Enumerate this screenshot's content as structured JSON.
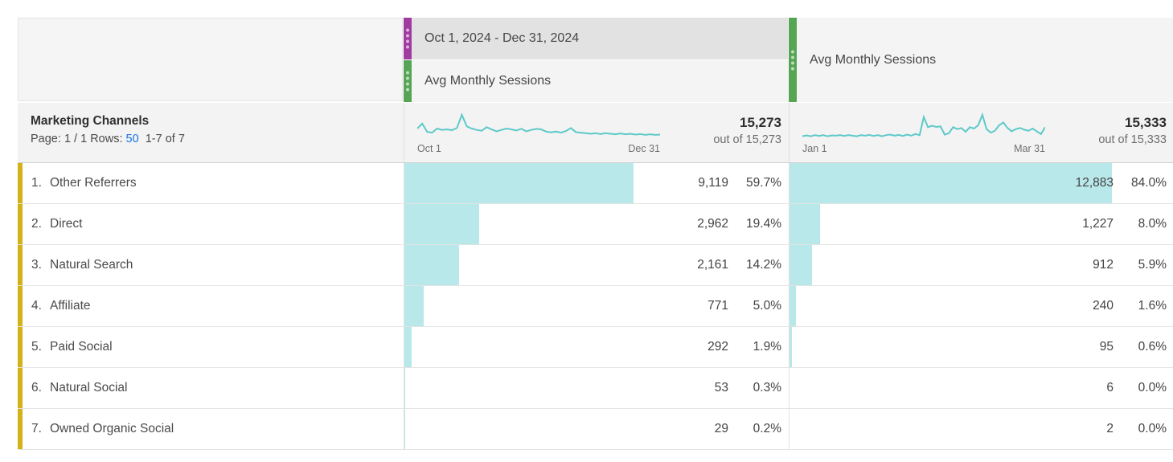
{
  "colors": {
    "accent_purple": "#a03ca0",
    "accent_green": "#55a555",
    "accent_yellow": "#d3b117",
    "spark_teal": "#5ec9c9",
    "bar_teal": "#b9e8ea",
    "link_blue": "#1473e6"
  },
  "header": {
    "date_range": "Oct 1, 2024 - Dec 31, 2024",
    "col1_metric": "Avg Monthly Sessions",
    "col2_metric": "Avg Monthly Sessions"
  },
  "dimension": {
    "title": "Marketing Channels",
    "page_label": "Page:",
    "page_value": "1 / 1",
    "rows_label": "Rows:",
    "rows_value": "50",
    "range_text": "1-7 of 7"
  },
  "totals": {
    "col1": {
      "value": "15,273",
      "out_of": "out of 15,273",
      "start_label": "Oct 1",
      "end_label": "Dec 31"
    },
    "col2": {
      "value": "15,333",
      "out_of": "out of 15,333",
      "start_label": "Jan 1",
      "end_label": "Mar 31"
    }
  },
  "sparklines": {
    "col1": [
      0.5,
      0.68,
      0.38,
      0.35,
      0.5,
      0.45,
      0.47,
      0.44,
      0.52,
      1.0,
      0.58,
      0.5,
      0.45,
      0.42,
      0.55,
      0.47,
      0.4,
      0.45,
      0.5,
      0.47,
      0.43,
      0.49,
      0.4,
      0.45,
      0.49,
      0.47,
      0.39,
      0.36,
      0.39,
      0.35,
      0.41,
      0.52,
      0.37,
      0.35,
      0.33,
      0.31,
      0.33,
      0.3,
      0.33,
      0.31,
      0.29,
      0.32,
      0.29,
      0.31,
      0.28,
      0.3,
      0.27,
      0.29,
      0.27,
      0.28
    ],
    "col2": [
      0.22,
      0.25,
      0.22,
      0.26,
      0.23,
      0.26,
      0.22,
      0.25,
      0.24,
      0.26,
      0.23,
      0.26,
      0.24,
      0.22,
      0.26,
      0.24,
      0.27,
      0.23,
      0.26,
      0.22,
      0.26,
      0.28,
      0.24,
      0.27,
      0.23,
      0.28,
      0.24,
      0.3,
      0.26,
      0.92,
      0.55,
      0.6,
      0.56,
      0.58,
      0.28,
      0.33,
      0.55,
      0.48,
      0.52,
      0.38,
      0.55,
      0.5,
      0.62,
      1.0,
      0.48,
      0.35,
      0.42,
      0.62,
      0.72,
      0.52,
      0.4,
      0.48,
      0.52,
      0.46,
      0.42,
      0.5,
      0.4,
      0.3,
      0.55
    ]
  },
  "rows": [
    {
      "rank": "1.",
      "label": "Other Referrers",
      "col1": {
        "value": "9,119",
        "pct": "59.7%",
        "bar": 59.7
      },
      "col2": {
        "value": "12,883",
        "pct": "84.0%",
        "bar": 84.0
      }
    },
    {
      "rank": "2.",
      "label": "Direct",
      "col1": {
        "value": "2,962",
        "pct": "19.4%",
        "bar": 19.4
      },
      "col2": {
        "value": "1,227",
        "pct": "8.0%",
        "bar": 8.0
      }
    },
    {
      "rank": "3.",
      "label": "Natural Search",
      "col1": {
        "value": "2,161",
        "pct": "14.2%",
        "bar": 14.2
      },
      "col2": {
        "value": "912",
        "pct": "5.9%",
        "bar": 5.9
      }
    },
    {
      "rank": "4.",
      "label": "Affiliate",
      "col1": {
        "value": "771",
        "pct": "5.0%",
        "bar": 5.0
      },
      "col2": {
        "value": "240",
        "pct": "1.6%",
        "bar": 1.6
      }
    },
    {
      "rank": "5.",
      "label": "Paid Social",
      "col1": {
        "value": "292",
        "pct": "1.9%",
        "bar": 1.9
      },
      "col2": {
        "value": "95",
        "pct": "0.6%",
        "bar": 0.6
      }
    },
    {
      "rank": "6.",
      "label": "Natural Social",
      "col1": {
        "value": "53",
        "pct": "0.3%",
        "bar": 0.3
      },
      "col2": {
        "value": "6",
        "pct": "0.0%",
        "bar": 0.0
      }
    },
    {
      "rank": "7.",
      "label": "Owned Organic Social",
      "col1": {
        "value": "29",
        "pct": "0.2%",
        "bar": 0.2
      },
      "col2": {
        "value": "2",
        "pct": "0.0%",
        "bar": 0.0
      }
    }
  ]
}
